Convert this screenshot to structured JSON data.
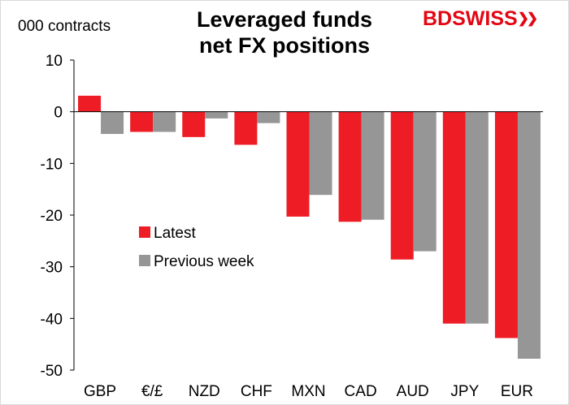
{
  "brand": {
    "name_part1": "BD",
    "name_part2": "SWISS",
    "arrows": "❯❯",
    "color_primary": "#e30613"
  },
  "chart_data": {
    "type": "bar",
    "title_line1": "Leveraged funds",
    "title_line2": "net FX positions",
    "units_label": "000 contracts",
    "categories": [
      "GBP",
      "€/£",
      "NZD",
      "CHF",
      "MXN",
      "CAD",
      "AUD",
      "JPY",
      "EUR"
    ],
    "series": [
      {
        "name": "Latest",
        "color": "#ee1c25",
        "values": [
          3.1,
          -3.9,
          -4.9,
          -6.4,
          -20.3,
          -21.3,
          -28.6,
          -41.0,
          -43.8
        ]
      },
      {
        "name": "Previous week",
        "color": "#969696",
        "values": [
          -4.3,
          -3.9,
          -1.3,
          -2.2,
          -16.1,
          -20.9,
          -27.0,
          -41.0,
          -47.8
        ]
      }
    ],
    "ylim": [
      -50,
      10
    ],
    "yticks": [
      10,
      0,
      -10,
      -20,
      -30,
      -40,
      -50
    ],
    "xlabel": "",
    "ylabel": "",
    "grid": false,
    "legend_position": "center-left"
  }
}
